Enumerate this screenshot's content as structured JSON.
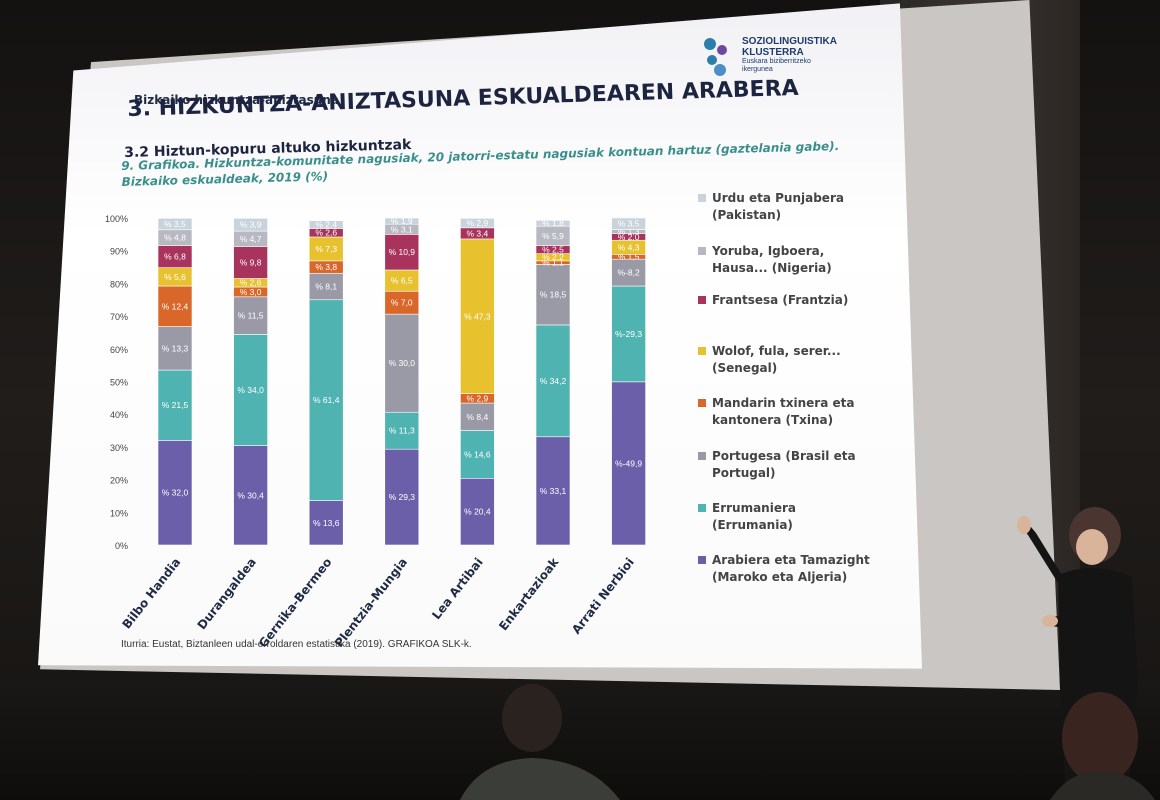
{
  "slide": {
    "section_label": "Bizkaiko hizkuntza-aniztasuna",
    "title": "3. HIZKUNTZA-ANIZTASUNA ESKUALDEAREN ARABERA",
    "subtitle": "3.2  Hiztun-kopuru altuko hizkuntzak",
    "caption": "9. Grafikoa. Hizkuntza-komunitate nagusiak, 20 jatorri-estatu nagusiak kontuan hartuz (gaztelania gabe). Bizkaiko eskualdeak, 2019 (%)",
    "source": "Iturria: Eustat, Biztanleen udal-erroldaren estatistika (2019).  GRAFIKOA SLK-k.",
    "logo": {
      "brand_line1": "SOZIOLINGUISTIKA",
      "brand_line2": "KLUSTERRA",
      "tagline_line1": "Euskara biziberritzeko",
      "tagline_line2": "ikergunea"
    }
  },
  "chart_data": {
    "type": "bar",
    "stacked": true,
    "normalized_percent": true,
    "ylim": [
      0,
      100
    ],
    "yticks": [
      "0%",
      "10%",
      "20%",
      "30%",
      "40%",
      "50%",
      "60%",
      "70%",
      "80%",
      "90%",
      "100%"
    ],
    "categories": [
      "Bilbo Handia",
      "Durangaldea",
      "Gernika-Bermeo",
      "Plentzia-Mungia",
      "Lea Artibai",
      "Enkartazioak",
      "Arrati Nerbioi"
    ],
    "series": [
      {
        "name": "Arabiera eta Tamazight (Maroko eta Aljeria)",
        "color": "#6a5fa8",
        "values": [
          32.0,
          30.4,
          13.6,
          29.3,
          20.4,
          33.1,
          49.9
        ],
        "labels": [
          "% 32,0",
          "% 30,4",
          "% 13,6",
          "% 29,3",
          "% 20,4",
          "% 33,1",
          "%-49,9"
        ]
      },
      {
        "name": "Errumaniera (Errumania)",
        "color": "#4fb3b1",
        "values": [
          21.5,
          34.0,
          61.4,
          11.3,
          14.6,
          34.2,
          29.3
        ],
        "labels": [
          "% 21,5",
          "% 34,0",
          "% 61,4",
          "% 11,3",
          "% 14,6",
          "% 34,2",
          "%-29,3"
        ]
      },
      {
        "name": "Portugesa (Brasil eta Portugal)",
        "color": "#9a9aa6",
        "values": [
          13.3,
          11.5,
          8.1,
          30.0,
          8.4,
          18.5,
          8.2
        ],
        "labels": [
          "% 13,3",
          "% 11,5",
          "% 8,1",
          "% 30,0",
          "% 8,4",
          "% 18,5",
          "%-8,2"
        ]
      },
      {
        "name": "Mandarin txinera eta kantonera (Txina)",
        "color": "#d9672a",
        "values": [
          12.4,
          3.0,
          3.8,
          7.0,
          2.9,
          1.1,
          1.5
        ],
        "labels": [
          "% 12,4",
          "% 3,0",
          "% 3,8",
          "% 7,0",
          "% 2,9",
          "% 1,1",
          "% 1,5"
        ]
      },
      {
        "name": "Wolof, fula, serer... (Senegal)",
        "color": "#e8c12e",
        "values": [
          5.6,
          2.6,
          7.3,
          6.5,
          47.3,
          2.2,
          4.3
        ],
        "labels": [
          "% 5,6",
          "% 2,6",
          "% 7,3",
          "% 6,5",
          "% 47,3",
          "% 2,2",
          "% 4,3"
        ]
      },
      {
        "name": "Frantsesa (Frantzia)",
        "color": "#a8345e",
        "values": [
          6.8,
          9.8,
          2.6,
          10.9,
          3.4,
          2.5,
          2.0
        ],
        "labels": [
          "% 6,8",
          "% 9,8",
          "% 2,6",
          "% 10,9",
          "% 3,4",
          "% 2,5",
          "% 2,0"
        ]
      },
      {
        "name": "Yoruba, Igboera, Hausa... (Nigeria)",
        "color": "#b8b8c2",
        "values": [
          4.8,
          4.7,
          0.0,
          3.1,
          0.0,
          5.9,
          1.3
        ],
        "labels": [
          "% 4,8",
          "% 4,7",
          "",
          "% 3,1",
          "",
          "% 5,9",
          "% 1,3"
        ]
      },
      {
        "name": "Urdu eta Punjabera (Pakistan)",
        "color": "#c8d3dc",
        "values": [
          3.5,
          3.9,
          2.4,
          1.9,
          2.9,
          1.8,
          3.5
        ],
        "labels": [
          "% 3,5",
          "% 3,9",
          "% 2,4",
          "% 1,9",
          "% 2,9",
          "% 1,8",
          "% 3,5"
        ]
      }
    ],
    "legend": [
      "Urdu eta Punjabera (Pakistan)",
      "Yoruba, Igboera, Hausa... (Nigeria)",
      "Frantsesa (Frantzia)",
      "Wolof, fula, serer... (Senegal)",
      "Mandarin txinera eta kantonera (Txina)",
      "Portugesa (Brasil eta Portugal)",
      "Errumaniera (Errumania)",
      "Arabiera eta Tamazight (Maroko eta Aljeria)"
    ],
    "legend_position": "right"
  }
}
